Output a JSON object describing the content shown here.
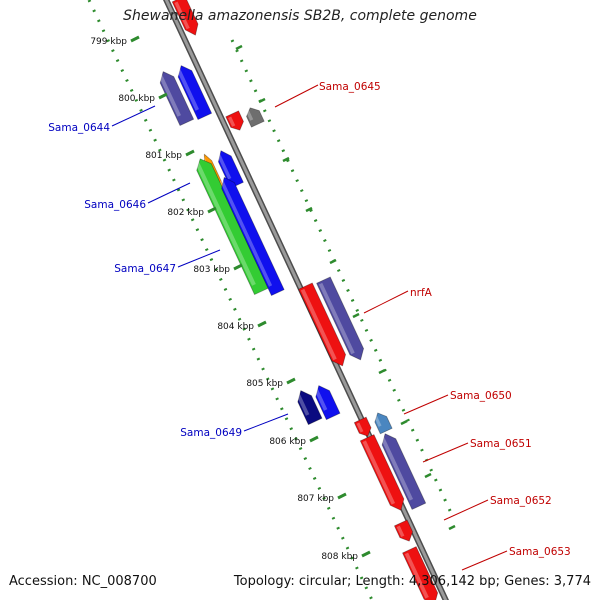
{
  "title": "Shewanella amazonensis SB2B, complete genome",
  "footer": {
    "accession": "Accession: NC_008700",
    "summary": "Topology: circular; Length: 4,306,142 bp; Genes: 3,774"
  },
  "colors": {
    "backbone": "#8c8c8c",
    "tick": "#2e8b2e",
    "forward_label": "#c00000",
    "reverse_label": "#0000c0",
    "cds_red": "#ee1111",
    "cds_blue": "#1010ee",
    "cds_slate": "#4f4aa0",
    "cds_green": "#33cc33",
    "cds_orange": "#ff9900",
    "cds_gray": "#6e6e6e",
    "cds_navy": "#0a0a80",
    "cds_steel": "#4a86c0"
  },
  "kbp_ticks": [
    "799 kbp",
    "800 kbp",
    "801 kbp",
    "802 kbp",
    "803 kbp",
    "804 kbp",
    "805 kbp",
    "806 kbp",
    "807 kbp",
    "808 kbp"
  ],
  "genes": [
    {
      "label": "Sama_0645",
      "strand": "forward"
    },
    {
      "label": "Sama_0644",
      "strand": "reverse"
    },
    {
      "label": "Sama_0646",
      "strand": "reverse"
    },
    {
      "label": "Sama_0647",
      "strand": "reverse"
    },
    {
      "label": "nrfA",
      "strand": "forward"
    },
    {
      "label": "Sama_0650",
      "strand": "forward"
    },
    {
      "label": "Sama_0649",
      "strand": "reverse"
    },
    {
      "label": "Sama_0651",
      "strand": "forward"
    },
    {
      "label": "Sama_0652",
      "strand": "forward"
    },
    {
      "label": "Sama_0653",
      "strand": "forward"
    }
  ]
}
